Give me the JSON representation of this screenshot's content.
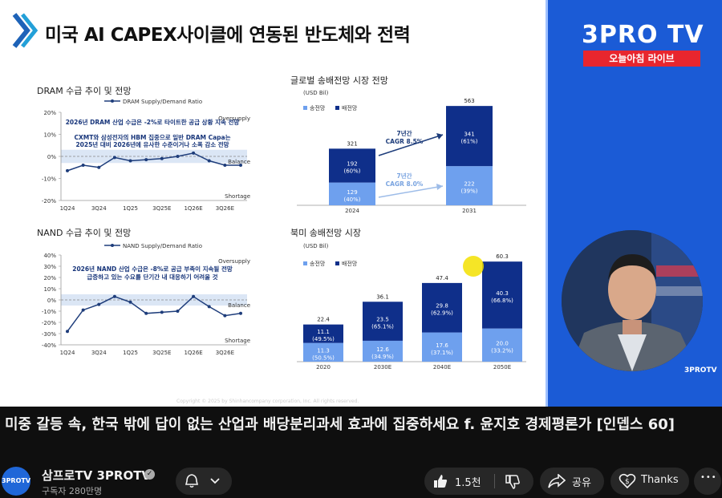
{
  "slide": {
    "title": "미국 AI CAPEX사이클에 연동된 반도체와 전력",
    "copyright": "Copyright © 2025 by Shinhancompany corporation, Inc.  All rights reserved."
  },
  "brand": {
    "logo": "3PRO TV",
    "live_badge": "오늘아침 라이브",
    "watermark": "3PROTV"
  },
  "caption": "미중 갈등 속, 한국 밖에 답이 없는 산업과 배당분리과세 효과에 집중하세요 f. 윤지호 경제평론가 [인뎁스 60]",
  "channel": {
    "avatar_text": "3PROTV",
    "name": "삼프로TV 3PROTV",
    "subscribers": "구독자 280만명",
    "verified_glyph": "✓"
  },
  "actions": {
    "like_count": "1.5천",
    "share_label": "공유",
    "thanks_label": "Thanks",
    "more_glyph": "•••"
  },
  "colors": {
    "brand_blue": "#1b5bd6",
    "live_red": "#e8262e",
    "navy": "#0f2f8a",
    "light_blue": "#6ea0ee",
    "line_navy": "#1e3d7b"
  },
  "chart_data": [
    {
      "type": "line",
      "title": "DRAM 수급 추이 및 전망",
      "legend": "DRAM Supply/Demand Ratio",
      "x_ticks": [
        "1Q24",
        "3Q24",
        "1Q25",
        "3Q25E",
        "1Q26E",
        "3Q26E"
      ],
      "y_ticks": [
        "20%",
        "10%",
        "0%",
        "-10%",
        "-20%"
      ],
      "ylim": [
        -20,
        20
      ],
      "values": [
        -6.5,
        -4,
        -5,
        -0.5,
        -2,
        -1.5,
        -1,
        0,
        1.5,
        -2,
        -4,
        -4
      ],
      "band_labels": [
        "Oversupply",
        "Balance",
        "Shortage"
      ],
      "annotation": [
        "2026년 DRAM 산업 수급은 -2%로 타이트한 공급 상황 지속 전망",
        "CXMT와 삼성전자의 HBM 집중으로 일반 DRAM Capa는",
        "2025년 대비 2026년에 유사한 수준이거나 소폭 감소 전망"
      ]
    },
    {
      "type": "line",
      "title": "NAND 수급 추이 및 전망",
      "legend": "NAND Supply/Demand Ratio",
      "x_ticks": [
        "1Q24",
        "3Q24",
        "1Q25",
        "3Q25E",
        "1Q26E",
        "3Q26E"
      ],
      "y_ticks": [
        "40%",
        "30%",
        "20%",
        "10%",
        "0%",
        "-10%",
        "-20%",
        "-30%",
        "-40%"
      ],
      "ylim": [
        -40,
        40
      ],
      "values": [
        -28,
        -9,
        -4,
        3,
        -2,
        -12,
        -11,
        -10,
        3,
        -6,
        -14,
        -12
      ],
      "band_labels": [
        "Oversupply",
        "Balance",
        "Shortage"
      ],
      "annotation": [
        "2026년 NAND 산업 수급은 -8%로 공급 부족이 지속될 전망",
        "급증하고 있는 수요를 단기간 내 대응하기 어려울 것"
      ]
    },
    {
      "type": "bar",
      "title": "글로벌 송배전망 시장 전망",
      "unit": "(USD Bil)",
      "legend": [
        "송전망",
        "배전망"
      ],
      "categories": [
        "2024",
        "2031"
      ],
      "totals": [
        "321",
        "563"
      ],
      "series": [
        {
          "name": "송전망",
          "values": [
            129,
            222
          ],
          "labels": [
            "129",
            "222"
          ],
          "shares": [
            "(40%)",
            "(39%)"
          ]
        },
        {
          "name": "배전망",
          "values": [
            192,
            341
          ],
          "labels": [
            "192",
            "341"
          ],
          "shares": [
            "(60%)",
            "(61%)"
          ]
        }
      ],
      "cagr": [
        [
          "7년간",
          "CAGR 8.5%"
        ],
        [
          "7년간",
          "CAGR 8.0%"
        ]
      ]
    },
    {
      "type": "bar",
      "title": "북미 송배전망 시장",
      "unit": "(USD Bil)",
      "legend": [
        "송전망",
        "배전망"
      ],
      "categories": [
        "2020",
        "2030E",
        "2040E",
        "2050E"
      ],
      "totals": [
        "22.4",
        "36.1",
        "47.4",
        "60.3"
      ],
      "series": [
        {
          "name": "송전망",
          "values": [
            11.3,
            12.6,
            17.6,
            20.0
          ],
          "labels": [
            "11.3",
            "12.6",
            "17.6",
            "20.0"
          ],
          "shares": [
            "(50.5%)",
            "(34.9%)",
            "(37.1%)",
            "(33.2%)"
          ]
        },
        {
          "name": "배전망",
          "values": [
            11.1,
            23.5,
            29.8,
            40.3
          ],
          "labels": [
            "11.1",
            "23.5",
            "29.8",
            "40.3"
          ],
          "shares": [
            "(49.5%)",
            "(65.1%)",
            "(62.9%)",
            "(66.8%)"
          ]
        }
      ]
    }
  ]
}
